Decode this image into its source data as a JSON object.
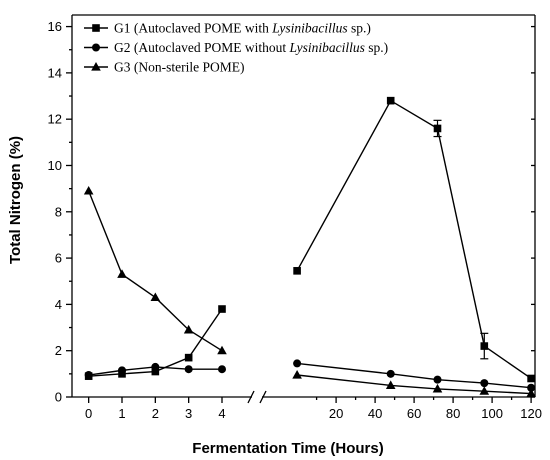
{
  "chart_data": {
    "type": "line",
    "xlabel": "Fermentation Time (Hours)",
    "ylabel": "Total Nitrogen (%)",
    "ylim": [
      0,
      16.5
    ],
    "yticks": [
      0,
      2,
      4,
      6,
      8,
      10,
      12,
      14,
      16
    ],
    "x_axis_broken": true,
    "x_segment_1": {
      "range": [
        -0.5,
        4.9
      ],
      "ticks": [
        0,
        1,
        2,
        3,
        4
      ]
    },
    "x_segment_2": {
      "range": [
        -18,
        122
      ],
      "ticks": [
        20,
        40,
        60,
        80,
        100,
        120
      ]
    },
    "x_tick_labels": [
      "0",
      "1",
      "2",
      "3",
      "4",
      "20",
      "40",
      "60",
      "80",
      "100",
      "120"
    ],
    "legend_position": "top-left",
    "series": [
      {
        "name": "G1",
        "legend": {
          "prefix": "G1 (Autoclaved POME with ",
          "italic": "Lysinibacillus",
          "suffix": " sp.)"
        },
        "marker": "square",
        "seg1": {
          "x": [
            0,
            1,
            2,
            3,
            4
          ],
          "y": [
            0.9,
            1.0,
            1.1,
            1.7,
            3.8
          ]
        },
        "seg2": {
          "x": [
            0,
            48,
            72,
            96,
            120
          ],
          "y": [
            5.45,
            12.8,
            11.6,
            2.2,
            0.8
          ],
          "err": [
            0.1,
            0.1,
            0.35,
            0.55,
            0.1
          ]
        }
      },
      {
        "name": "G2",
        "legend": {
          "prefix": "G2 (Autoclaved POME without ",
          "italic": "Lysinibacillus",
          "suffix": " sp.)"
        },
        "marker": "circle",
        "seg1": {
          "x": [
            0,
            1,
            2,
            3,
            4
          ],
          "y": [
            0.95,
            1.15,
            1.3,
            1.2,
            1.2
          ]
        },
        "seg2": {
          "x": [
            0,
            48,
            72,
            96,
            120
          ],
          "y": [
            1.45,
            1.0,
            0.75,
            0.6,
            0.4
          ],
          "err": [
            0.05,
            0.05,
            0.05,
            0.1,
            0.05
          ]
        }
      },
      {
        "name": "G3",
        "legend": {
          "prefix": "G3 (Non-sterile POME)",
          "italic": "",
          "suffix": ""
        },
        "marker": "triangle",
        "seg1": {
          "x": [
            0,
            1,
            2,
            3,
            4
          ],
          "y": [
            8.9,
            5.3,
            4.3,
            2.9,
            2.0
          ]
        },
        "seg2": {
          "x": [
            0,
            48,
            72,
            96,
            120
          ],
          "y": [
            0.95,
            0.5,
            0.35,
            0.25,
            0.15
          ],
          "err": [
            0.05,
            0.05,
            0.05,
            0.1,
            0.05
          ]
        }
      }
    ]
  }
}
